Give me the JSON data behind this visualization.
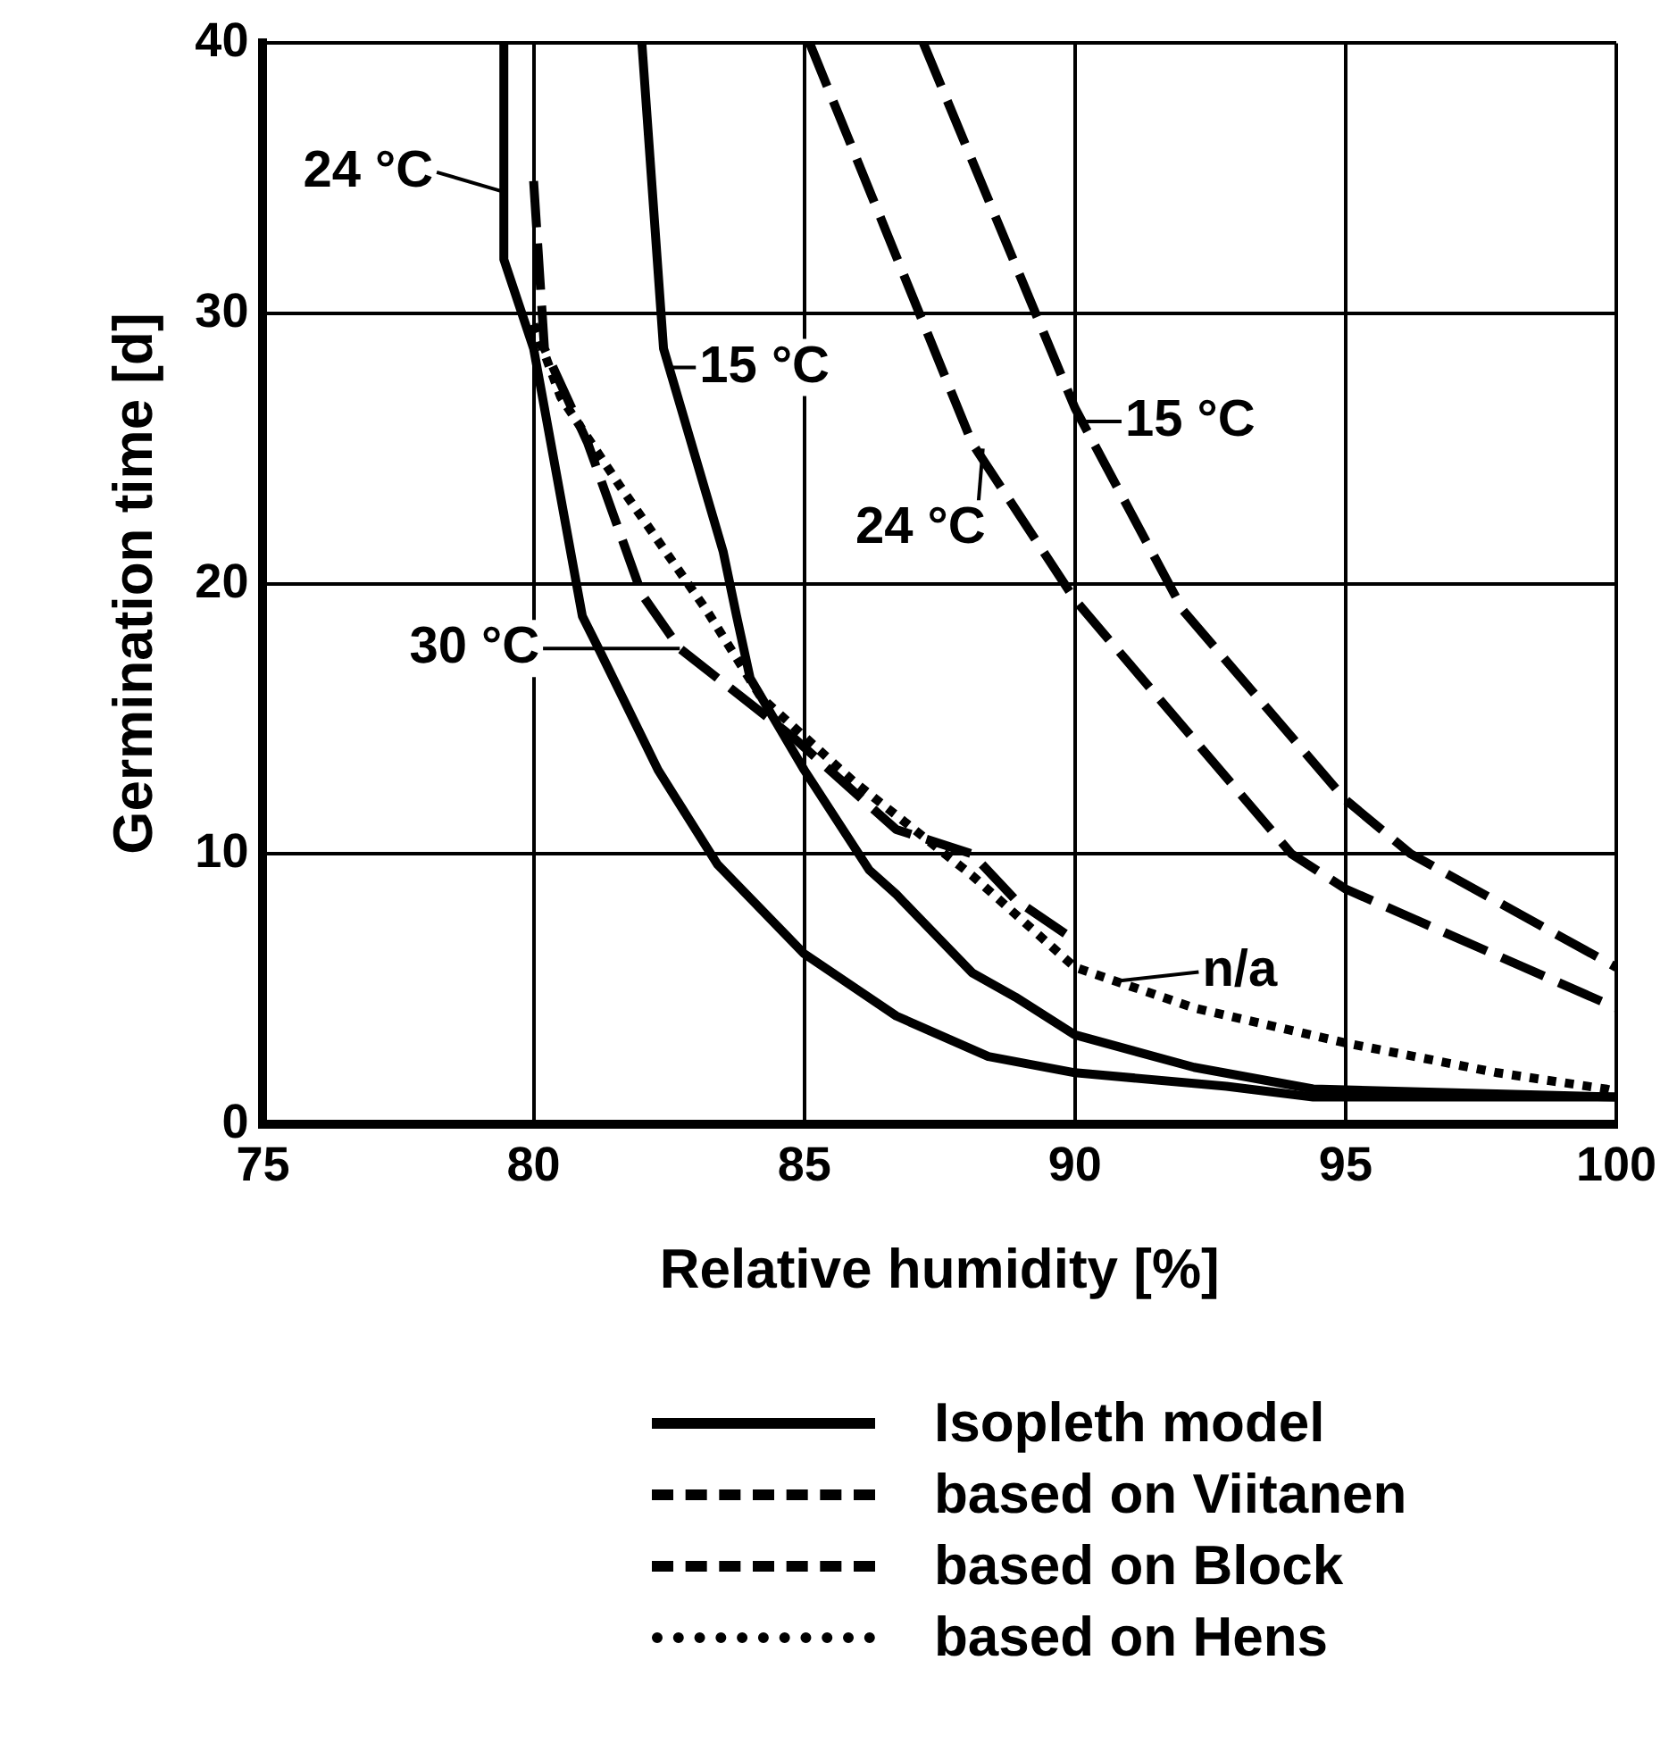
{
  "chart_data": {
    "type": "line",
    "xlabel": "Relative humidity [%]",
    "ylabel": "Germination time [d]",
    "xlim": [
      75,
      100
    ],
    "xticks": [
      75,
      80,
      85,
      90,
      95,
      100
    ],
    "ylim": [
      0,
      40
    ],
    "yticks": [
      0,
      10,
      20,
      30,
      40
    ],
    "grid": true,
    "legend": "bottom",
    "series": [
      {
        "name": "Isopleth model",
        "color": "#000000",
        "line_style": "solid",
        "x": [
          79.45,
          79.45,
          80.0,
          80.9,
          81.2,
          82.3,
          83.4,
          85.0,
          86.7,
          88.4,
          90.0,
          92.8,
          94.4,
          100
        ],
        "values": [
          40,
          32,
          28.7,
          18.8,
          17.6,
          13.1,
          9.6,
          6.3,
          4.0,
          2.5,
          1.9,
          1.4,
          1.0,
          1.0
        ]
      },
      {
        "color": "#000000",
        "line_style": "solid",
        "x": [
          82.0,
          82.4,
          83.5,
          83.75,
          84.0,
          85.0,
          86.2,
          86.7,
          88.1,
          88.9,
          90.0,
          92.2,
          94.4,
          100
        ],
        "values": [
          40,
          28.7,
          21.2,
          18.8,
          16.5,
          13.1,
          9.4,
          8.5,
          5.6,
          4.7,
          3.3,
          2.1,
          1.3,
          1.0
        ]
      },
      {
        "name": "based on Viitanen",
        "color": "#000000",
        "line_style": "dashed",
        "x": [
          87.2,
          90.0,
          92.0,
          95.0,
          96.2,
          100
        ],
        "values": [
          40,
          26.5,
          19.0,
          12.0,
          10.0,
          5.8
        ]
      },
      {
        "color": "#000000",
        "line_style": "dashed",
        "x": [
          85.1,
          88.1,
          90.0,
          94.0,
          95.0,
          100
        ],
        "values": [
          40,
          25.2,
          19.4,
          10.0,
          8.7,
          4.3
        ]
      },
      {
        "name": "based on Block",
        "color": "#000000",
        "line_style": "dashed",
        "x": [
          80.0,
          80.2,
          81.0,
          82.0,
          82.7,
          84.8,
          86.7,
          88.1,
          88.9,
          90.0
        ],
        "values": [
          34.9,
          28.7,
          25.2,
          19.6,
          17.6,
          14.3,
          10.9,
          10.0,
          8.3,
          6.8
        ]
      },
      {
        "name": "based on Hens",
        "color": "#000000",
        "line_style": "dotted",
        "x": [
          80.0,
          80.5,
          81.6,
          83.2,
          84.2,
          85.9,
          88.1,
          90.0,
          92.2,
          95.0,
          97.8,
          99.8,
          100
        ],
        "values": [
          29.6,
          26.9,
          23.6,
          19.0,
          15.8,
          12.7,
          9.2,
          5.8,
          4.3,
          3.0,
          1.9,
          1.3,
          1.2
        ]
      }
    ],
    "annotations": [
      {
        "text": "24 °C",
        "x": 79.45,
        "y": 34.5
      },
      {
        "text": "15 °C",
        "x": 82.45,
        "y": 28
      },
      {
        "text": "30 °C",
        "x": 82.7,
        "y": 17.6
      },
      {
        "text": "15 °C",
        "x": 90.05,
        "y": 26
      },
      {
        "text": "24 °C",
        "x": 88.3,
        "y": 25
      },
      {
        "text": "n/a",
        "x": 90.8,
        "y": 5.3
      }
    ]
  }
}
